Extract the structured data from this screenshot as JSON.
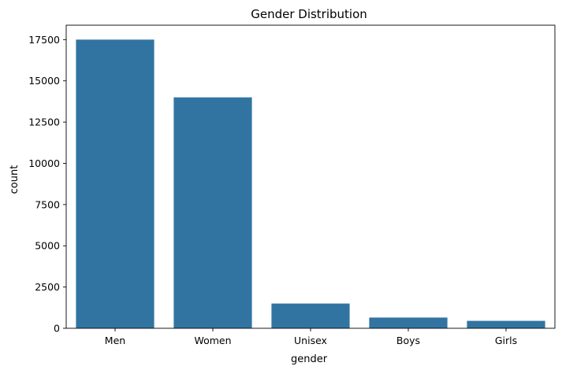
{
  "chart_data": {
    "type": "bar",
    "title": "Gender Distribution",
    "xlabel": "gender",
    "ylabel": "count",
    "categories": [
      "Men",
      "Women",
      "Unisex",
      "Boys",
      "Girls"
    ],
    "values": [
      17500,
      14000,
      1500,
      650,
      450
    ],
    "ylim": [
      0,
      18375
    ],
    "yticks": [
      0,
      2500,
      5000,
      7500,
      10000,
      12500,
      15000,
      17500
    ],
    "ytick_labels": [
      "0",
      "2500",
      "5000",
      "7500",
      "10000",
      "12500",
      "15000",
      "17500"
    ],
    "grid": false,
    "legend": "none",
    "bar_color": "#3274a1"
  }
}
